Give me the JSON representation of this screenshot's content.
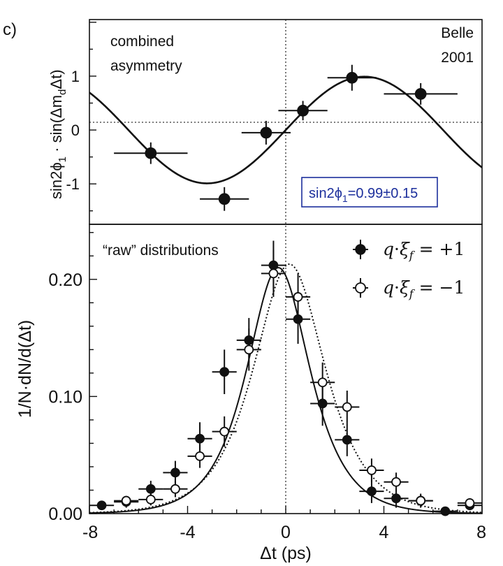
{
  "panel_label": "c)",
  "colors": {
    "box_border": "#1c2f9c",
    "box_text": "#1c2f9c",
    "ink": "#111111"
  },
  "chart_data": [
    {
      "type": "scatter",
      "title": "",
      "annotation_left": [
        "combined",
        "asymmetry"
      ],
      "annotation_right": [
        "Belle",
        "2001"
      ],
      "ylabel_parts": [
        "sin2",
        "ϕ",
        "1",
        " · sin(Δm",
        "d",
        "Δt)"
      ],
      "xlim": [
        -8,
        8
      ],
      "ylim": [
        -1.75,
        2.05
      ],
      "y_ticks": [
        -1,
        0,
        1
      ],
      "y_tick_labels": [
        "-1",
        "0",
        "1"
      ],
      "box_label_parts": [
        "sin2ϕ",
        "1",
        "=0.99±0.15"
      ],
      "points": [
        {
          "x": -5.5,
          "y": -0.43,
          "xerr": 1.5,
          "yerr": 0.2
        },
        {
          "x": -2.5,
          "y": -1.28,
          "xerr": 1.0,
          "yerr": 0.22
        },
        {
          "x": -0.8,
          "y": -0.05,
          "xerr": 1.0,
          "yerr": 0.22
        },
        {
          "x": 0.7,
          "y": 0.36,
          "xerr": 1.0,
          "yerr": 0.18
        },
        {
          "x": 2.7,
          "y": 0.97,
          "xerr": 1.0,
          "yerr": 0.24
        },
        {
          "x": 5.5,
          "y": 0.67,
          "xerr": 1.5,
          "yerr": 0.2
        }
      ],
      "curve": {
        "amplitude": 0.99,
        "omega": 0.49,
        "label": "fit"
      }
    },
    {
      "type": "scatter",
      "title": "“raw” distributions",
      "xlabel": "Δt (ps)",
      "ylabel": "1/N·dN/d(Δt)",
      "xlim": [
        -8,
        8
      ],
      "ylim": [
        0.0,
        0.247
      ],
      "x_ticks": [
        -8,
        -4,
        0,
        4,
        8
      ],
      "x_tick_labels": [
        "-8",
        "-4",
        "0",
        "4",
        "8"
      ],
      "y_ticks": [
        0.0,
        0.1,
        0.2
      ],
      "y_tick_labels": [
        "0.00",
        "0.10",
        "0.20"
      ],
      "series": [
        {
          "name": "q·ξf = +1",
          "legend_parts": [
            "q",
            "·",
            "ξ",
            "f",
            " = +1"
          ],
          "marker": "filled",
          "points": [
            {
              "x": -7.5,
              "y": 0.007,
              "xerr": 0.5,
              "yerr": 0.004
            },
            {
              "x": -6.5,
              "y": 0.01,
              "xerr": 0.5,
              "yerr": 0.005
            },
            {
              "x": -5.5,
              "y": 0.021,
              "xerr": 0.5,
              "yerr": 0.007
            },
            {
              "x": -4.5,
              "y": 0.035,
              "xerr": 0.5,
              "yerr": 0.01
            },
            {
              "x": -3.5,
              "y": 0.064,
              "xerr": 0.5,
              "yerr": 0.014
            },
            {
              "x": -2.5,
              "y": 0.121,
              "xerr": 0.5,
              "yerr": 0.019
            },
            {
              "x": -1.5,
              "y": 0.148,
              "xerr": 0.5,
              "yerr": 0.019
            },
            {
              "x": -0.5,
              "y": 0.212,
              "xerr": 0.5,
              "yerr": 0.021
            },
            {
              "x": 0.5,
              "y": 0.166,
              "xerr": 0.5,
              "yerr": 0.021
            },
            {
              "x": 1.5,
              "y": 0.094,
              "xerr": 0.5,
              "yerr": 0.019
            },
            {
              "x": 2.5,
              "y": 0.063,
              "xerr": 0.5,
              "yerr": 0.014
            },
            {
              "x": 3.5,
              "y": 0.019,
              "xerr": 0.5,
              "yerr": 0.01
            },
            {
              "x": 4.5,
              "y": 0.013,
              "xerr": 0.5,
              "yerr": 0.008
            },
            {
              "x": 5.5,
              "y": 0.011,
              "xerr": 0.5,
              "yerr": 0.006
            },
            {
              "x": 6.5,
              "y": 0.002,
              "xerr": 0.5,
              "yerr": 0.003
            },
            {
              "x": 7.5,
              "y": 0.007,
              "xerr": 0.5,
              "yerr": 0.004
            }
          ]
        },
        {
          "name": "q·ξf = −1",
          "legend_parts": [
            "q",
            "·",
            "ξ",
            "f",
            " = −1"
          ],
          "marker": "open",
          "points": [
            {
              "x": -6.5,
              "y": 0.011,
              "xerr": 0.5,
              "yerr": 0.004
            },
            {
              "x": -5.5,
              "y": 0.012,
              "xerr": 0.5,
              "yerr": 0.005
            },
            {
              "x": -4.5,
              "y": 0.021,
              "xerr": 0.5,
              "yerr": 0.007
            },
            {
              "x": -3.5,
              "y": 0.049,
              "xerr": 0.5,
              "yerr": 0.01
            },
            {
              "x": -2.5,
              "y": 0.07,
              "xerr": 0.5,
              "yerr": 0.013
            },
            {
              "x": -1.5,
              "y": 0.14,
              "xerr": 0.5,
              "yerr": 0.018
            },
            {
              "x": -0.5,
              "y": 0.205,
              "xerr": 0.5,
              "yerr": 0.02
            },
            {
              "x": 0.5,
              "y": 0.185,
              "xerr": 0.5,
              "yerr": 0.02
            },
            {
              "x": 1.5,
              "y": 0.112,
              "xerr": 0.5,
              "yerr": 0.017
            },
            {
              "x": 2.5,
              "y": 0.091,
              "xerr": 0.5,
              "yerr": 0.014
            },
            {
              "x": 3.5,
              "y": 0.037,
              "xerr": 0.5,
              "yerr": 0.01
            },
            {
              "x": 4.5,
              "y": 0.027,
              "xerr": 0.5,
              "yerr": 0.008
            },
            {
              "x": 5.5,
              "y": 0.011,
              "xerr": 0.5,
              "yerr": 0.005
            },
            {
              "x": 7.5,
              "y": 0.009,
              "xerr": 0.5,
              "yerr": 0.004
            }
          ]
        }
      ],
      "curves": [
        {
          "name": "fit +1",
          "style": "solid",
          "peak": 0.21,
          "mu": -0.3,
          "scale": 1.15
        },
        {
          "name": "fit -1",
          "style": "dotted",
          "peak": 0.213,
          "mu": 0.15,
          "scale": 1.3
        }
      ]
    }
  ]
}
